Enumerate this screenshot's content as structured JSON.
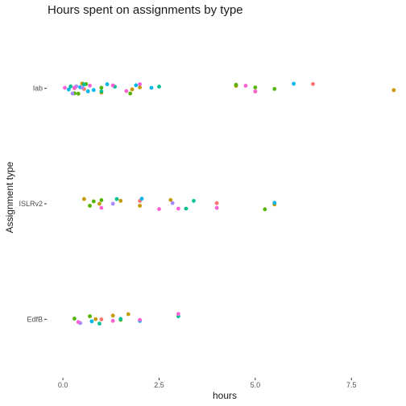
{
  "chart_data": {
    "type": "scatter",
    "title": "Hours spent on assignments by type",
    "xlabel": "hours",
    "ylabel": "Assignment type",
    "xlim": [
      -0.4,
      8.75
    ],
    "x_ticks": [
      "0.0",
      "2.5",
      "5.0",
      "7.5"
    ],
    "x_tick_values": [
      0,
      2.5,
      5.0,
      7.5
    ],
    "categories": [
      "EdfB",
      "ISLRv2",
      "lab"
    ],
    "grid": false,
    "legend": "none",
    "colors": [
      "#F8766D",
      "#C49A00",
      "#53B400",
      "#00C094",
      "#00B6EB",
      "#A58AFF",
      "#FB61D7"
    ],
    "series": [
      {
        "color": "#F8766D",
        "points": [
          {
            "category": "lab",
            "x": 0.3
          },
          {
            "category": "lab",
            "x": 0.55
          },
          {
            "category": "lab",
            "x": 6.5
          },
          {
            "category": "ISLRv2",
            "x": 2.0
          },
          {
            "category": "ISLRv2",
            "x": 4.0
          },
          {
            "category": "EdfB",
            "x": 1.0
          }
        ]
      },
      {
        "color": "#C49A00",
        "points": [
          {
            "category": "lab",
            "x": 0.5
          },
          {
            "category": "lab",
            "x": 1.0
          },
          {
            "category": "lab",
            "x": 1.8
          },
          {
            "category": "lab",
            "x": 2.0
          },
          {
            "category": "lab",
            "x": 4.5
          },
          {
            "category": "lab",
            "x": 5.0
          },
          {
            "category": "lab",
            "x": 8.6
          },
          {
            "category": "ISLRv2",
            "x": 0.55
          },
          {
            "category": "ISLRv2",
            "x": 0.95
          },
          {
            "category": "ISLRv2",
            "x": 1.5
          },
          {
            "category": "ISLRv2",
            "x": 2.0
          },
          {
            "category": "ISLRv2",
            "x": 2.8
          },
          {
            "category": "ISLRv2",
            "x": 5.5
          },
          {
            "category": "EdfB",
            "x": 0.85
          },
          {
            "category": "EdfB",
            "x": 1.3
          },
          {
            "category": "EdfB",
            "x": 1.7
          }
        ]
      },
      {
        "color": "#53B400",
        "points": [
          {
            "category": "lab",
            "x": 0.3
          },
          {
            "category": "lab",
            "x": 0.4
          },
          {
            "category": "lab",
            "x": 0.6
          },
          {
            "category": "lab",
            "x": 1.0
          },
          {
            "category": "lab",
            "x": 1.75
          },
          {
            "category": "lab",
            "x": 4.5
          },
          {
            "category": "lab",
            "x": 5.0
          },
          {
            "category": "lab",
            "x": 5.5
          },
          {
            "category": "ISLRv2",
            "x": 0.7
          },
          {
            "category": "ISLRv2",
            "x": 0.8
          },
          {
            "category": "ISLRv2",
            "x": 1.0
          },
          {
            "category": "ISLRv2",
            "x": 5.25
          },
          {
            "category": "EdfB",
            "x": 0.3
          },
          {
            "category": "EdfB",
            "x": 0.7
          },
          {
            "category": "EdfB",
            "x": 1.5
          }
        ]
      },
      {
        "color": "#00C094",
        "points": [
          {
            "category": "lab",
            "x": 0.2
          },
          {
            "category": "lab",
            "x": 0.55
          },
          {
            "category": "lab",
            "x": 1.0
          },
          {
            "category": "lab",
            "x": 1.35
          },
          {
            "category": "lab",
            "x": 2.5
          },
          {
            "category": "ISLRv2",
            "x": 1.4
          },
          {
            "category": "ISLRv2",
            "x": 3.2
          },
          {
            "category": "ISLRv2",
            "x": 3.4
          },
          {
            "category": "EdfB",
            "x": 0.95
          },
          {
            "category": "EdfB",
            "x": 1.5
          },
          {
            "category": "EdfB",
            "x": 3.0
          }
        ]
      },
      {
        "color": "#00B6EB",
        "points": [
          {
            "category": "lab",
            "x": 0.15
          },
          {
            "category": "lab",
            "x": 0.45
          },
          {
            "category": "lab",
            "x": 0.65
          },
          {
            "category": "lab",
            "x": 0.8
          },
          {
            "category": "lab",
            "x": 1.15
          },
          {
            "category": "lab",
            "x": 1.9
          },
          {
            "category": "lab",
            "x": 2.3
          },
          {
            "category": "lab",
            "x": 6.0
          },
          {
            "category": "ISLRv2",
            "x": 2.05
          },
          {
            "category": "ISLRv2",
            "x": 5.5
          },
          {
            "category": "EdfB",
            "x": 0.75
          },
          {
            "category": "EdfB",
            "x": 2.0
          }
        ]
      },
      {
        "color": "#A58AFF",
        "points": [
          {
            "category": "lab",
            "x": 0.25
          },
          {
            "category": "lab",
            "x": 0.35
          },
          {
            "category": "lab",
            "x": 0.5
          },
          {
            "category": "ISLRv2",
            "x": 1.3
          },
          {
            "category": "ISLRv2",
            "x": 2.85
          },
          {
            "category": "EdfB",
            "x": 0.45
          }
        ]
      },
      {
        "color": "#FB61D7",
        "points": [
          {
            "category": "lab",
            "x": 0.05
          },
          {
            "category": "lab",
            "x": 0.3
          },
          {
            "category": "lab",
            "x": 0.7
          },
          {
            "category": "lab",
            "x": 1.3
          },
          {
            "category": "lab",
            "x": 1.65
          },
          {
            "category": "lab",
            "x": 2.0
          },
          {
            "category": "lab",
            "x": 4.75
          },
          {
            "category": "lab",
            "x": 5.0
          },
          {
            "category": "ISLRv2",
            "x": 1.0
          },
          {
            "category": "ISLRv2",
            "x": 2.5
          },
          {
            "category": "ISLRv2",
            "x": 3.0
          },
          {
            "category": "ISLRv2",
            "x": 4.0
          },
          {
            "category": "EdfB",
            "x": 0.4
          },
          {
            "category": "EdfB",
            "x": 1.3
          },
          {
            "category": "EdfB",
            "x": 2.0
          },
          {
            "category": "EdfB",
            "x": 3.0
          }
        ]
      }
    ]
  }
}
